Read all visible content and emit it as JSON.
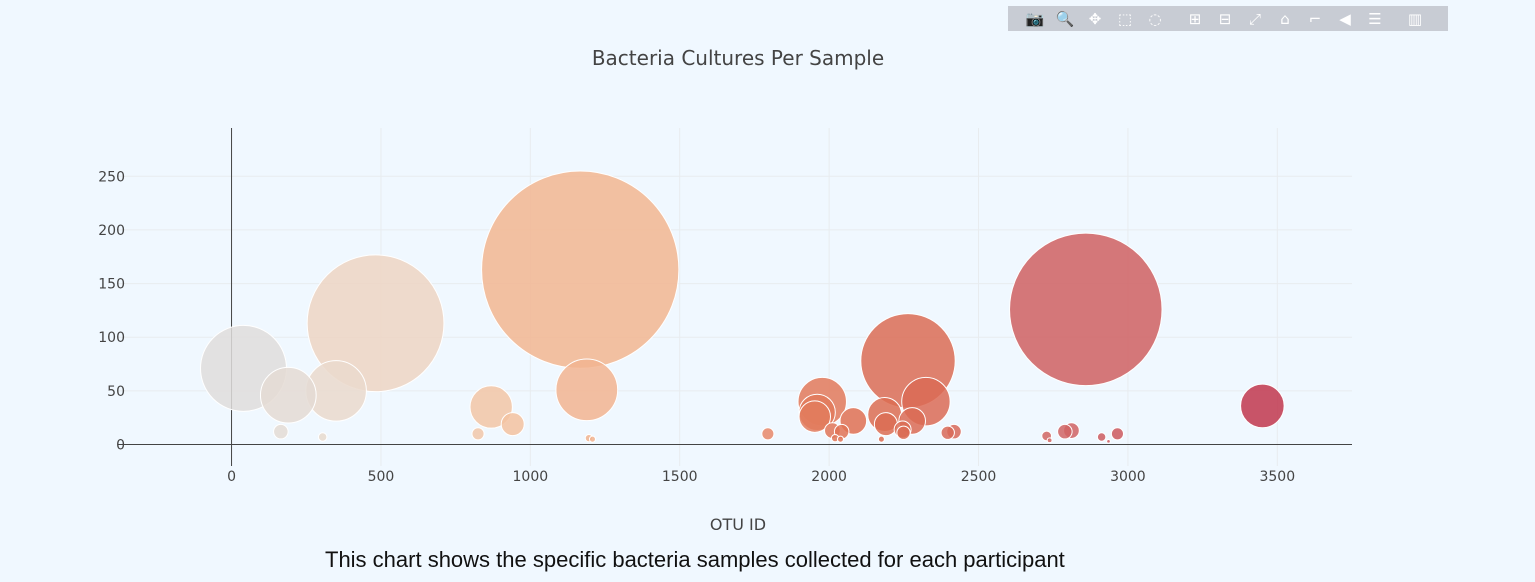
{
  "modebar": {
    "buttons": [
      {
        "name": "download-plot-icon",
        "glyph": "📷"
      },
      {
        "name": "zoom-icon",
        "glyph": "🔍",
        "active": true
      },
      {
        "name": "pan-icon",
        "glyph": "✥"
      },
      {
        "name": "box-select-icon",
        "glyph": "⬚"
      },
      {
        "name": "lasso-select-icon",
        "glyph": "◌"
      },
      {
        "name": "zoom-in-icon",
        "glyph": "⊞"
      },
      {
        "name": "zoom-out-icon",
        "glyph": "⊟"
      },
      {
        "name": "autoscale-icon",
        "glyph": "⤢"
      },
      {
        "name": "reset-axes-icon",
        "glyph": "⌂"
      },
      {
        "name": "toggle-spike-lines-icon",
        "glyph": "⌐"
      },
      {
        "name": "hover-closest-icon",
        "glyph": "◀"
      },
      {
        "name": "hover-compare-icon",
        "glyph": "☰"
      },
      {
        "name": "plotly-logo-icon",
        "glyph": "▥"
      }
    ]
  },
  "caption": "This chart shows the specific bacteria samples collected for each participant",
  "chart_data": {
    "type": "scatter",
    "mode": "markers",
    "title": "Bacteria Cultures Per Sample",
    "xlabel": "OTU ID",
    "ylabel": "",
    "xlim": [
      -380,
      3750
    ],
    "ylim": [
      -20,
      295
    ],
    "x_ticks": [
      0,
      500,
      1000,
      1500,
      2000,
      2500,
      3000,
      3500
    ],
    "y_ticks": [
      0,
      50,
      100,
      150,
      200,
      250
    ],
    "grid": true,
    "colorscale": "Earth-like (light gray to tan to red)",
    "colors": {
      "low": "#dddddd",
      "mid": "#f4b88e",
      "high": "#c0344c"
    },
    "x": [
      40,
      190,
      350,
      482,
      1167,
      1189,
      869,
      941,
      165,
      305,
      825,
      1795,
      1977,
      1960,
      1952,
      2011,
      2081,
      2042,
      2264,
      2186,
      2190,
      2278,
      2324,
      2246,
      2249,
      2397,
      2418,
      2859,
      2789,
      2811,
      2728,
      2912,
      2965,
      3450,
      1196,
      1208,
      2020,
      2038,
      2175,
      2738,
      2935
    ],
    "y": [
      71,
      46,
      50,
      113,
      163,
      51,
      35,
      19,
      12,
      7,
      10,
      10,
      40,
      30,
      26,
      13,
      22,
      12,
      78,
      28,
      19,
      22,
      40,
      14,
      11,
      11,
      12,
      126,
      12,
      13,
      8,
      7,
      10,
      36,
      6,
      5,
      6,
      5,
      5,
      4,
      3
    ],
    "marker_size": [
      71,
      46,
      50,
      113,
      163,
      51,
      35,
      19,
      12,
      7,
      10,
      10,
      40,
      30,
      26,
      13,
      22,
      12,
      78,
      28,
      19,
      22,
      40,
      14,
      11,
      11,
      12,
      126,
      12,
      13,
      8,
      7,
      10,
      36,
      6,
      5,
      6,
      5,
      5,
      4,
      3
    ],
    "marker_line_color": "#ffffff"
  }
}
